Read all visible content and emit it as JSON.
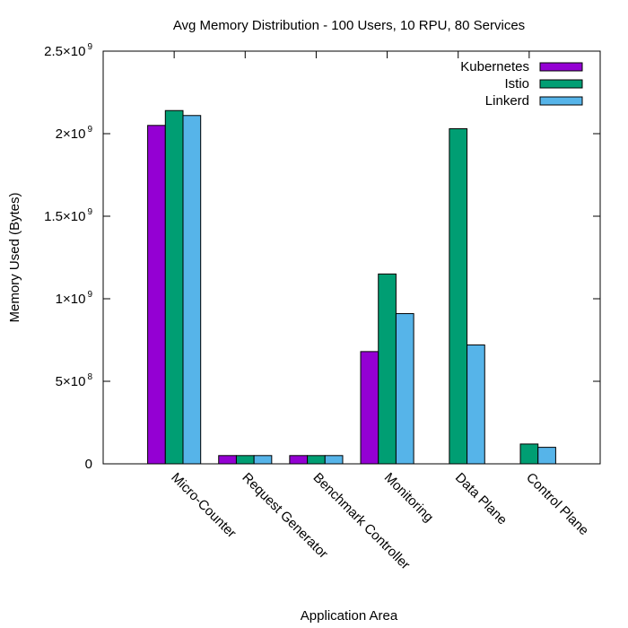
{
  "chart_data": {
    "type": "bar",
    "title": "Avg Memory Distribution - 100 Users, 10 RPU, 80 Services",
    "xlabel": "Application Area",
    "ylabel": "Memory Used (Bytes)",
    "ylim": [
      0,
      2500000000
    ],
    "yticks": [
      {
        "value": 0,
        "mantissa": "0",
        "exp": ""
      },
      {
        "value": 500000000,
        "mantissa": "5×10",
        "exp": "8"
      },
      {
        "value": 1000000000,
        "mantissa": "1×10",
        "exp": "9"
      },
      {
        "value": 1500000000,
        "mantissa": "1.5×10",
        "exp": "9"
      },
      {
        "value": 2000000000,
        "mantissa": "2×10",
        "exp": "9"
      },
      {
        "value": 2500000000,
        "mantissa": "2.5×10",
        "exp": "9"
      }
    ],
    "categories": [
      "Micro-Counter",
      "Request Generator",
      "Benchmark Controller",
      "Monitoring",
      "Data Plane",
      "Control Plane"
    ],
    "series": [
      {
        "name": "Kubernetes",
        "color": "#9400d3",
        "values": [
          2050000000,
          50000000,
          50000000,
          680000000,
          0,
          0
        ]
      },
      {
        "name": "Istio",
        "color": "#009e73",
        "values": [
          2140000000,
          50000000,
          50000000,
          1150000000,
          2030000000,
          120000000
        ]
      },
      {
        "name": "Linkerd",
        "color": "#56b4e9",
        "values": [
          2110000000,
          50000000,
          50000000,
          910000000,
          720000000,
          100000000
        ]
      }
    ],
    "legend": "top-right",
    "grid": false
  }
}
